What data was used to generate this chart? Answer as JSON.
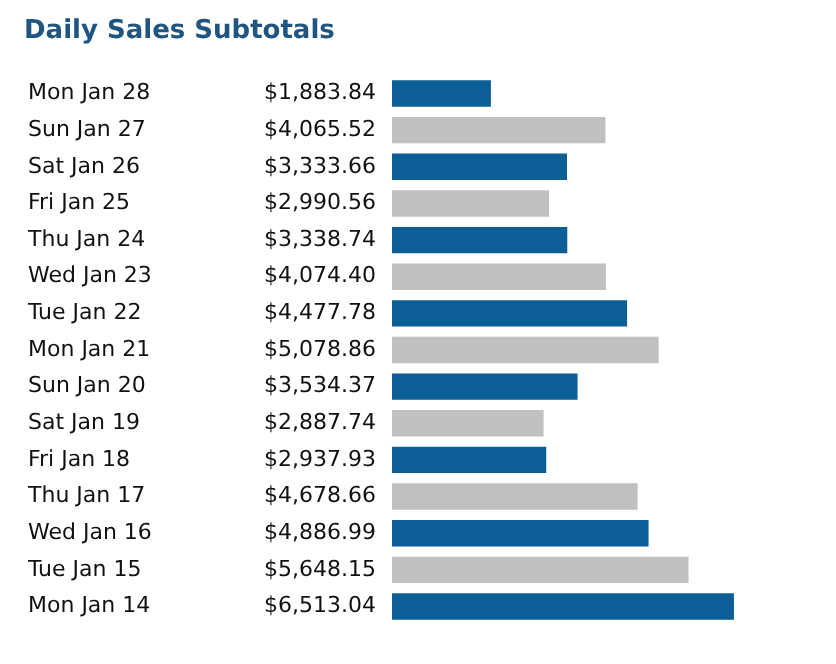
{
  "chart_data": {
    "type": "bar",
    "orientation": "horizontal",
    "title": "Daily Sales Subtotals",
    "categories": [
      "Mon Jan 28",
      "Sun Jan 27",
      "Sat Jan 26",
      "Fri Jan 25",
      "Thu Jan 24",
      "Wed Jan 23",
      "Tue Jan 22",
      "Mon Jan 21",
      "Sun Jan 20",
      "Sat Jan 19",
      "Fri Jan 18",
      "Thu Jan 17",
      "Wed Jan 16",
      "Tue Jan 15",
      "Mon Jan 14"
    ],
    "values": [
      1883.84,
      4065.52,
      3333.66,
      2990.56,
      3338.74,
      4074.4,
      4477.78,
      5078.86,
      3534.37,
      2887.74,
      2937.93,
      4678.66,
      4886.99,
      5648.15,
      6513.04
    ],
    "value_labels": [
      "$1,883.84",
      "$4,065.52",
      "$3,333.66",
      "$2,990.56",
      "$3,338.74",
      "$4,074.40",
      "$4,477.78",
      "$5,078.86",
      "$3,534.37",
      "$2,887.74",
      "$2,937.93",
      "$4,678.66",
      "$4,886.99",
      "$5,648.15",
      "$6,513.04"
    ],
    "colors": [
      "#0b5e96",
      "#c0c0c0",
      "#0b5e96",
      "#c0c0c0",
      "#0b5e96",
      "#c0c0c0",
      "#0b5e96",
      "#c0c0c0",
      "#0b5e96",
      "#c0c0c0",
      "#0b5e96",
      "#c0c0c0",
      "#0b5e96",
      "#c0c0c0",
      "#0b5e96"
    ]
  }
}
